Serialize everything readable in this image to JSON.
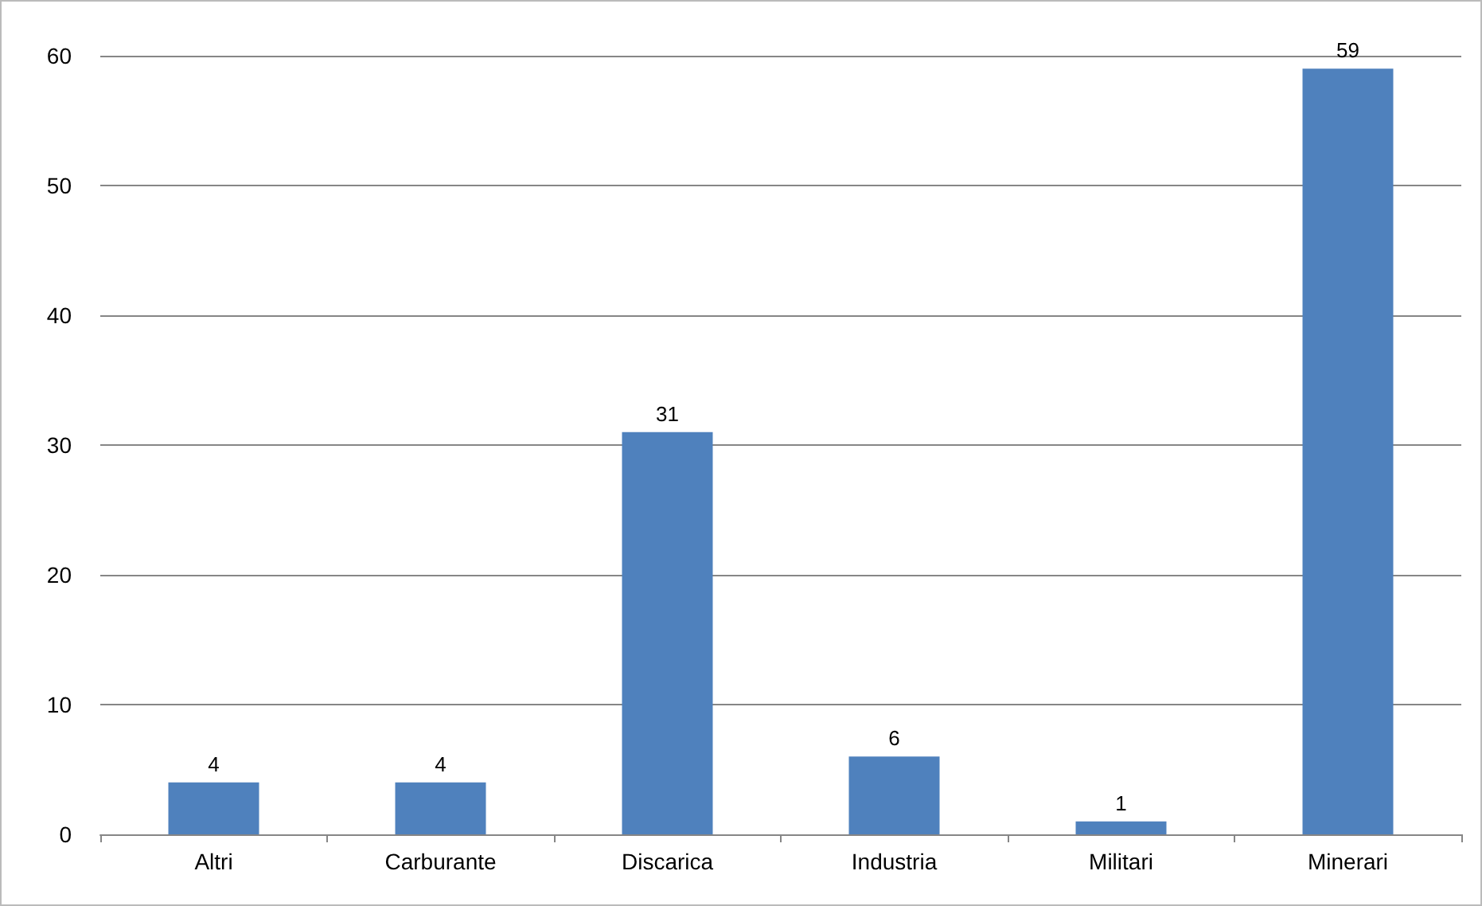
{
  "chart_data": {
    "type": "bar",
    "categories": [
      "Altri",
      "Carburante",
      "Discarica",
      "Industria",
      "Militari",
      "Minerari"
    ],
    "values": [
      4,
      4,
      31,
      6,
      1,
      59
    ],
    "color": "#4f81bd",
    "ylim": [
      0,
      60
    ],
    "yticks": [
      0,
      10,
      20,
      30,
      40,
      50,
      60
    ],
    "grid": "y",
    "data_labels": true
  }
}
